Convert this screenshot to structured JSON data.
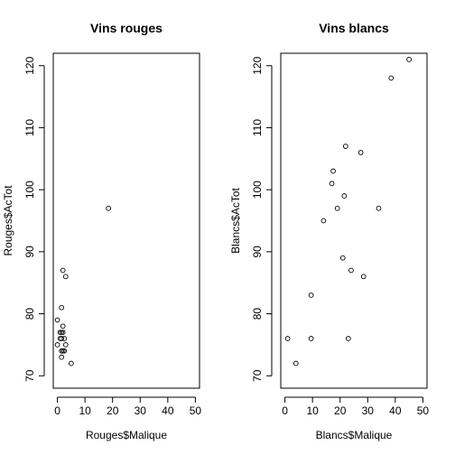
{
  "chart_data": [
    {
      "type": "scatter",
      "title": "Vins rouges",
      "xlabel": "Rouges$Malique",
      "ylabel": "Rouges$AcTot",
      "xlim": [
        -1.5,
        51.5
      ],
      "ylim": [
        68,
        122
      ],
      "xticks": [
        0,
        10,
        20,
        30,
        40,
        50
      ],
      "yticks": [
        70,
        80,
        90,
        100,
        110,
        120
      ],
      "x": [
        18.5,
        2,
        3,
        1.5,
        0,
        1,
        1.5,
        2,
        1.5,
        2.5,
        1,
        0,
        3,
        1.5,
        2,
        2.5,
        5,
        1.5,
        2
      ],
      "y": [
        97,
        87,
        86,
        81,
        79,
        77,
        77,
        78,
        76,
        76,
        76,
        75,
        75,
        74,
        74,
        74,
        72,
        73,
        77
      ]
    },
    {
      "type": "scatter",
      "title": "Vins blancs",
      "xlabel": "Blancs$Malique",
      "ylabel": "Blancs$AcTot",
      "xlim": [
        -1.5,
        51.5
      ],
      "ylim": [
        68,
        122
      ],
      "xticks": [
        0,
        10,
        20,
        30,
        40,
        50
      ],
      "yticks": [
        70,
        80,
        90,
        100,
        110,
        120
      ],
      "x": [
        45,
        38.5,
        22,
        27.5,
        17.5,
        17,
        21.5,
        19,
        14,
        34,
        21,
        24,
        28.5,
        9.5,
        9.5,
        1,
        23,
        4
      ],
      "y": [
        121,
        118,
        107,
        106,
        103,
        101,
        99,
        97,
        95,
        97,
        89,
        87,
        86,
        83,
        76,
        76,
        76,
        72
      ]
    }
  ]
}
